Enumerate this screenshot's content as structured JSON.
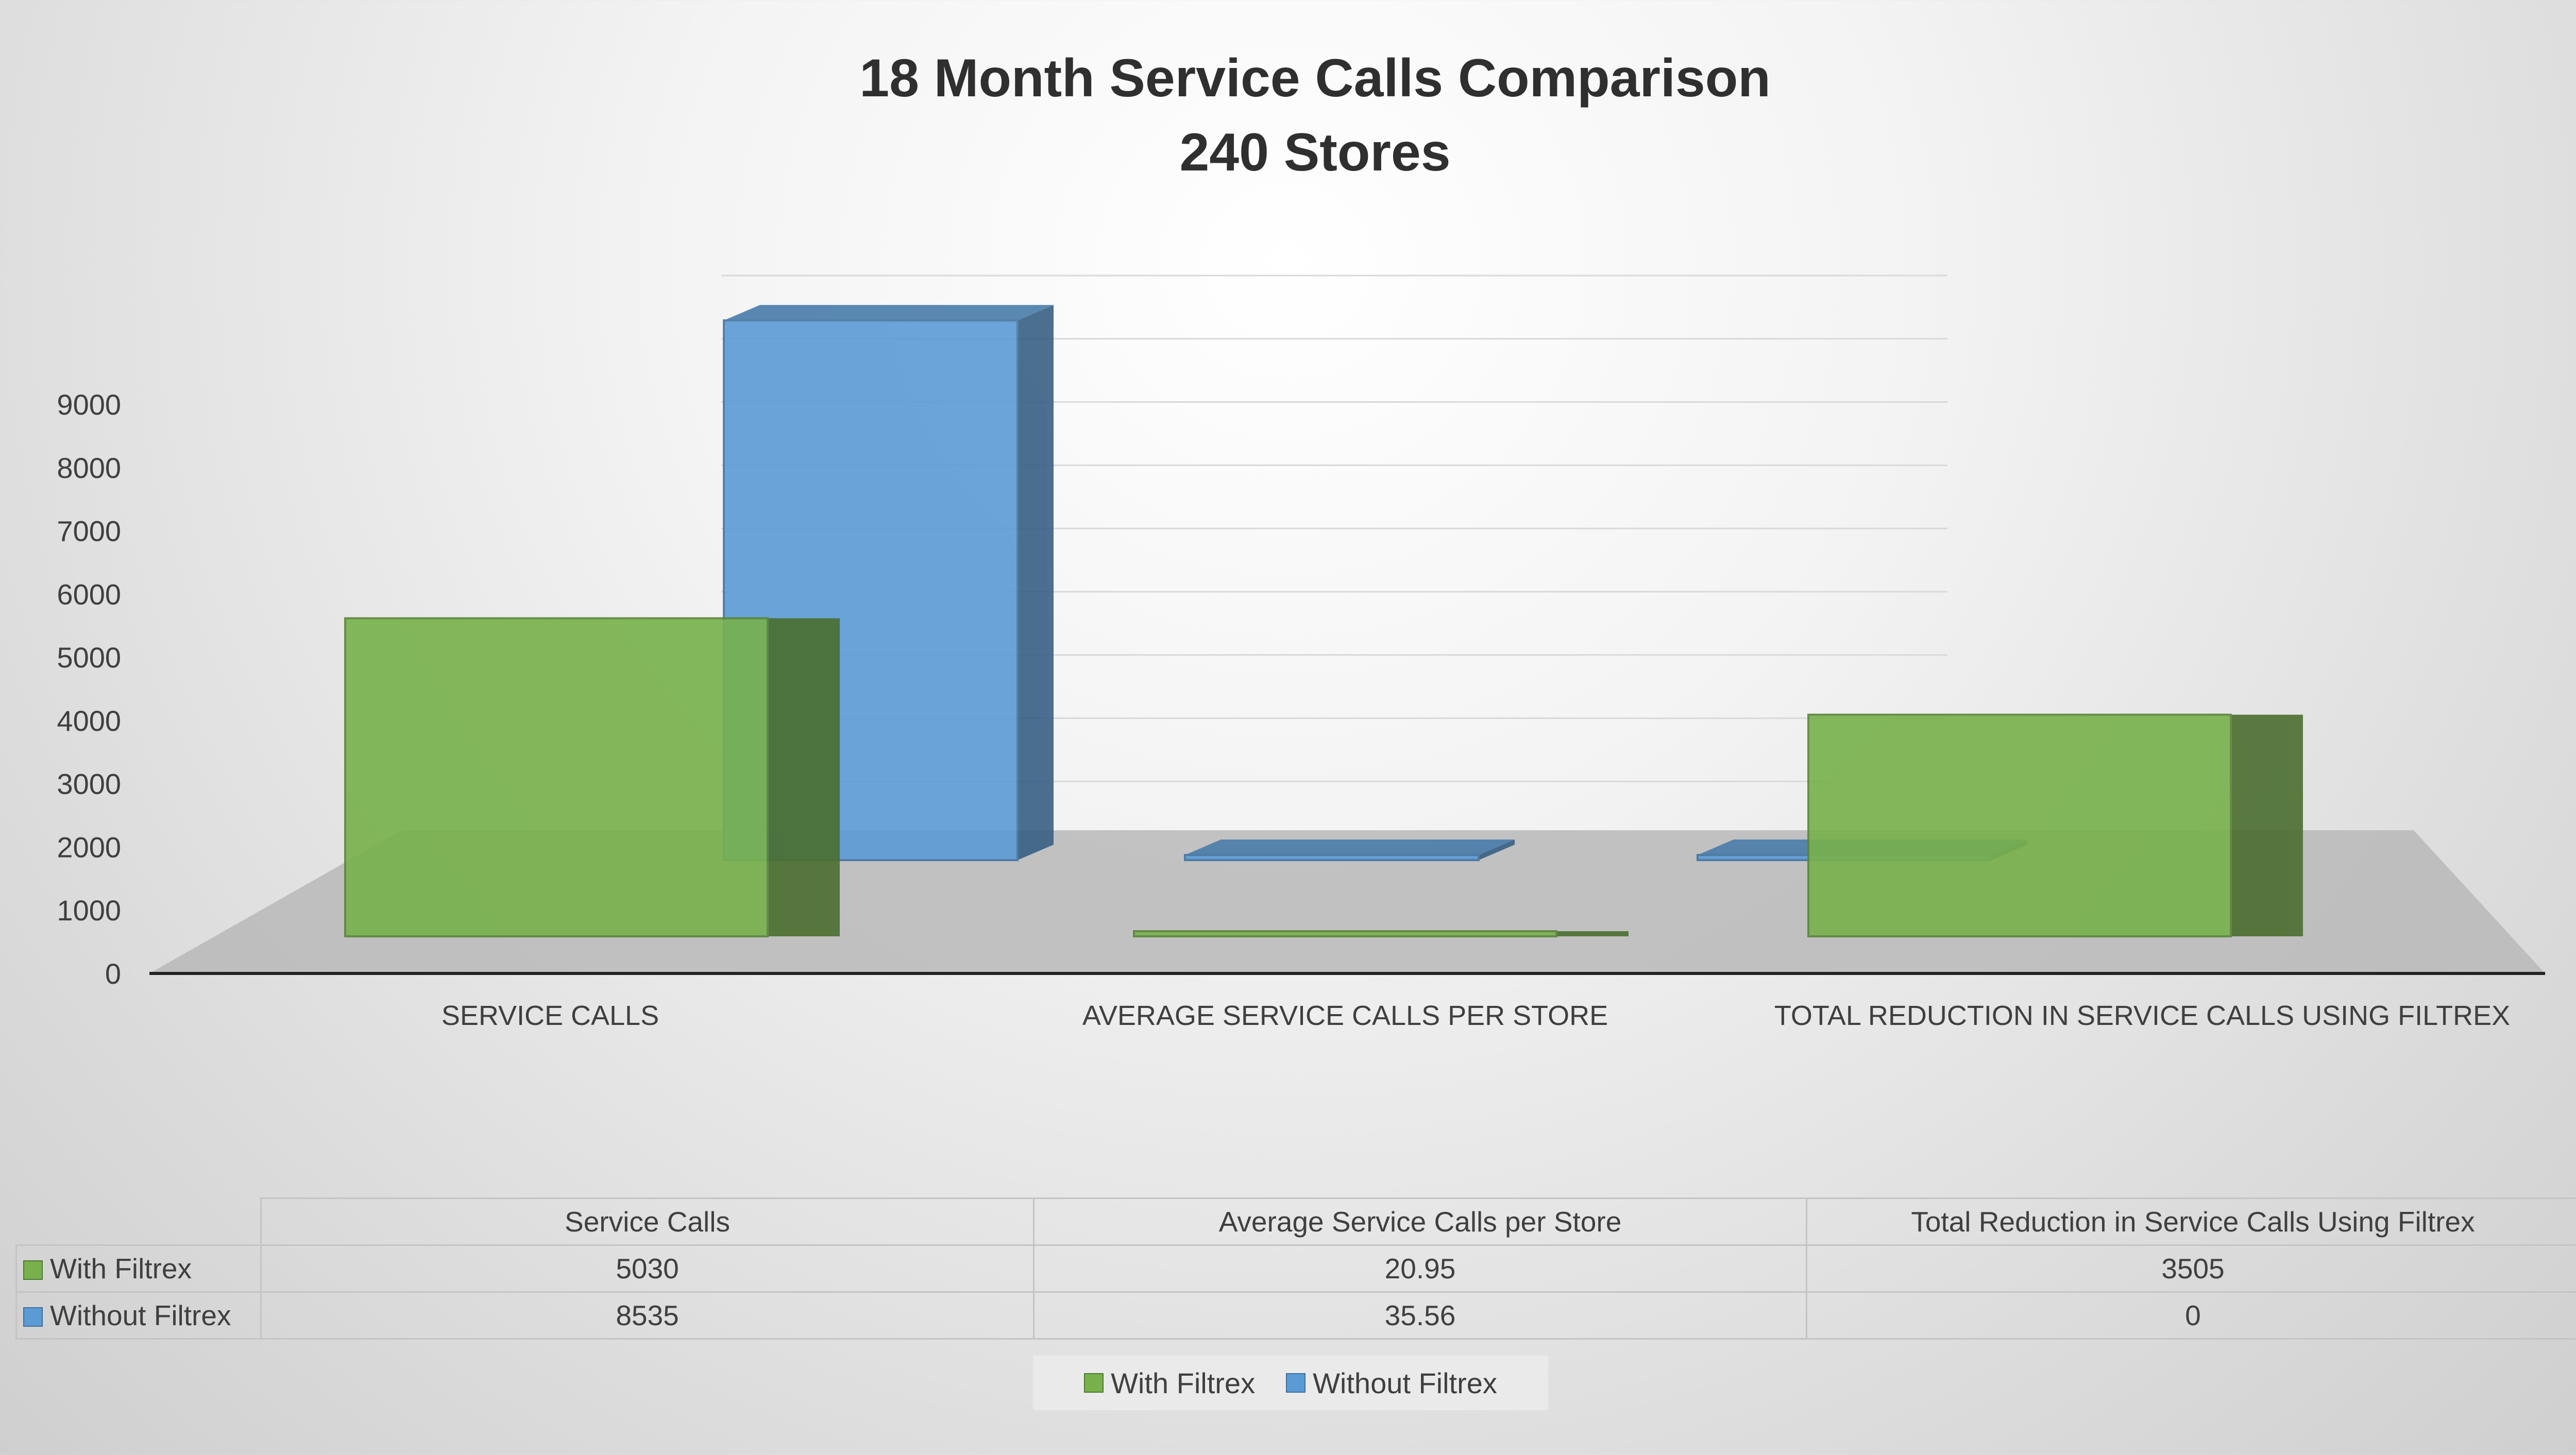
{
  "chart_data": {
    "type": "bar",
    "title": "18 Month Service Calls Comparison",
    "subtitle": "240 Stores",
    "categories": [
      "SERVICE CALLS",
      "AVERAGE SERVICE CALLS PER STORE",
      "TOTAL REDUCTION IN SERVICE CALLS USING FILTREX"
    ],
    "series": [
      {
        "name": "With Filtrex",
        "values": [
          5030,
          20.95,
          3505
        ],
        "color": "#78b14c"
      },
      {
        "name": "Without Filtrex",
        "values": [
          8535,
          35.56,
          0
        ],
        "color": "#5b9bd5"
      }
    ],
    "yticks": [
      "0",
      "1000",
      "2000",
      "3000",
      "4000",
      "5000",
      "6000",
      "7000",
      "8000",
      "9000"
    ],
    "ylim": [
      0,
      9000
    ],
    "legend_position": "bottom",
    "style": "3d"
  },
  "table": {
    "headers": [
      "Service Calls",
      "Average Service Calls per Store",
      "Total Reduction in Service Calls Using Filtrex"
    ],
    "rows": [
      {
        "label": "With Filtrex",
        "values": [
          "5030",
          "20.95",
          "3505"
        ]
      },
      {
        "label": "Without Filtrex",
        "values": [
          "8535",
          "35.56",
          "0"
        ]
      }
    ]
  }
}
